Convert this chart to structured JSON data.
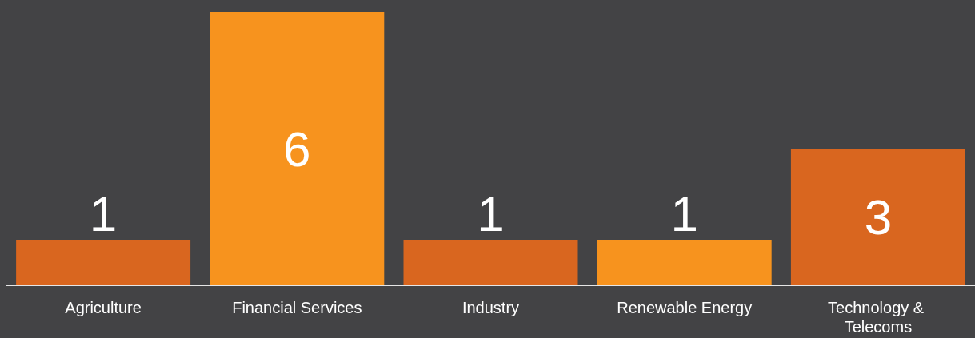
{
  "chart_data": {
    "type": "bar",
    "categories": [
      "Agriculture",
      "Financial Services",
      "Industry",
      "Renewable Energy",
      "Technology & Telecoms"
    ],
    "values": [
      1,
      6,
      1,
      1,
      3
    ],
    "colors": [
      "#d9661f",
      "#f7931e",
      "#d9661f",
      "#f7931e",
      "#d9661f"
    ],
    "data_labels": true,
    "grid": false
  }
}
